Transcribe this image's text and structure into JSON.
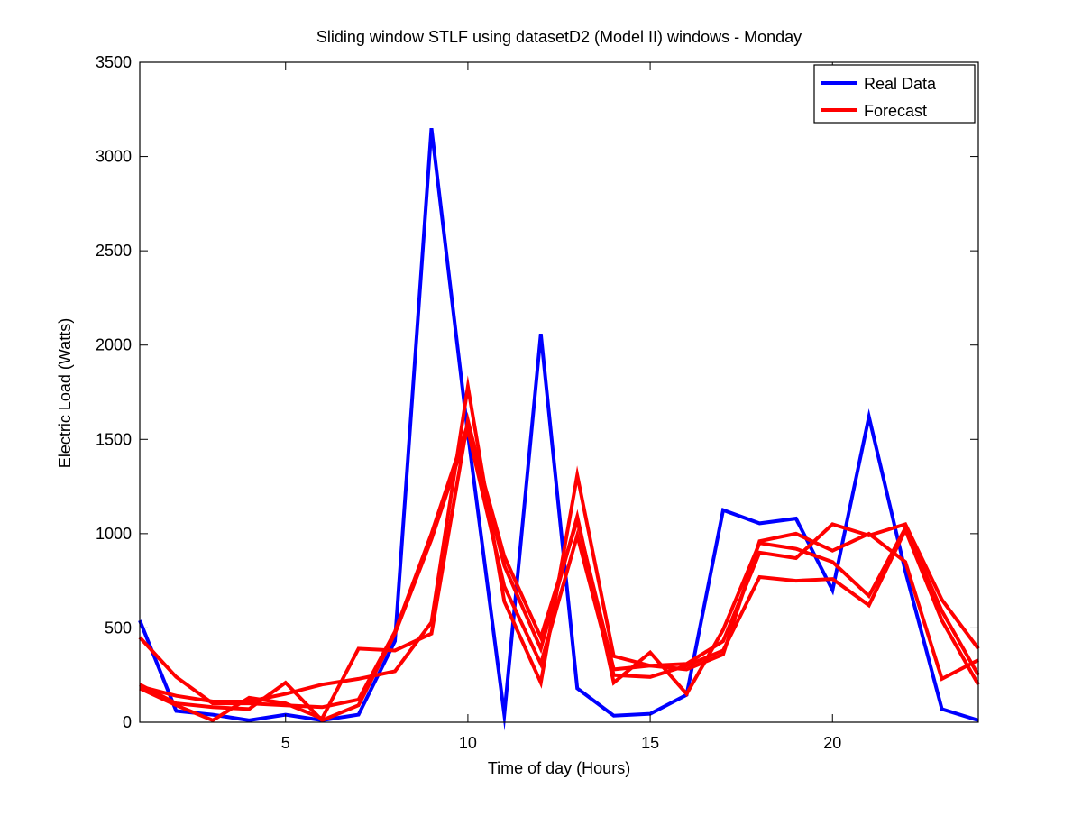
{
  "chart_data": {
    "type": "line",
    "title": "Sliding window STLF using datasetD2 (Model II) windows - Monday",
    "xlabel": "Time of day (Hours)",
    "ylabel": "Electric Load (Watts)",
    "xlim": [
      1,
      24
    ],
    "ylim": [
      0,
      3500
    ],
    "xticks": [
      5,
      10,
      15,
      20
    ],
    "yticks": [
      0,
      500,
      1000,
      1500,
      2000,
      2500,
      3000,
      3500
    ],
    "grid": false,
    "legend_position": "top-right",
    "legend": [
      {
        "label": "Real Data",
        "color": "#0000ff"
      },
      {
        "label": "Forecast",
        "color": "#ff0000"
      }
    ],
    "x": [
      1,
      2,
      3,
      4,
      5,
      6,
      7,
      8,
      9,
      10,
      11,
      12,
      13,
      14,
      15,
      16,
      17,
      18,
      19,
      20,
      21,
      22,
      23,
      24
    ],
    "series": [
      {
        "name": "Real Data",
        "color": "#0000ff",
        "values": [
          540,
          60,
          40,
          10,
          40,
          10,
          40,
          430,
          3150,
          1530,
          40,
          2060,
          180,
          35,
          45,
          145,
          1125,
          1055,
          1080,
          700,
          1620,
          800,
          70,
          10
        ]
      },
      {
        "color": "#ff0000",
        "values": [
          450,
          240,
          100,
          100,
          90,
          80,
          120,
          480,
          1000,
          1580,
          880,
          450,
          1070,
          280,
          300,
          310,
          430,
          900,
          870,
          1050,
          990,
          1050,
          650,
          390
        ]
      },
      {
        "color": "#ff0000",
        "values": [
          190,
          140,
          110,
          110,
          150,
          200,
          230,
          270,
          530,
          1780,
          640,
          210,
          1310,
          350,
          300,
          280,
          360,
          960,
          1000,
          910,
          1000,
          850,
          230,
          330
        ]
      },
      {
        "color": "#ff0000",
        "values": [
          180,
          90,
          10,
          130,
          100,
          20,
          390,
          380,
          470,
          1600,
          830,
          390,
          1090,
          210,
          370,
          150,
          490,
          950,
          920,
          850,
          670,
          1030,
          590,
          250
        ]
      },
      {
        "color": "#ff0000",
        "values": [
          200,
          100,
          80,
          70,
          210,
          10,
          90,
          470,
          970,
          1550,
          720,
          310,
          990,
          250,
          240,
          300,
          380,
          770,
          750,
          760,
          620,
          1020,
          540,
          200
        ]
      }
    ]
  }
}
